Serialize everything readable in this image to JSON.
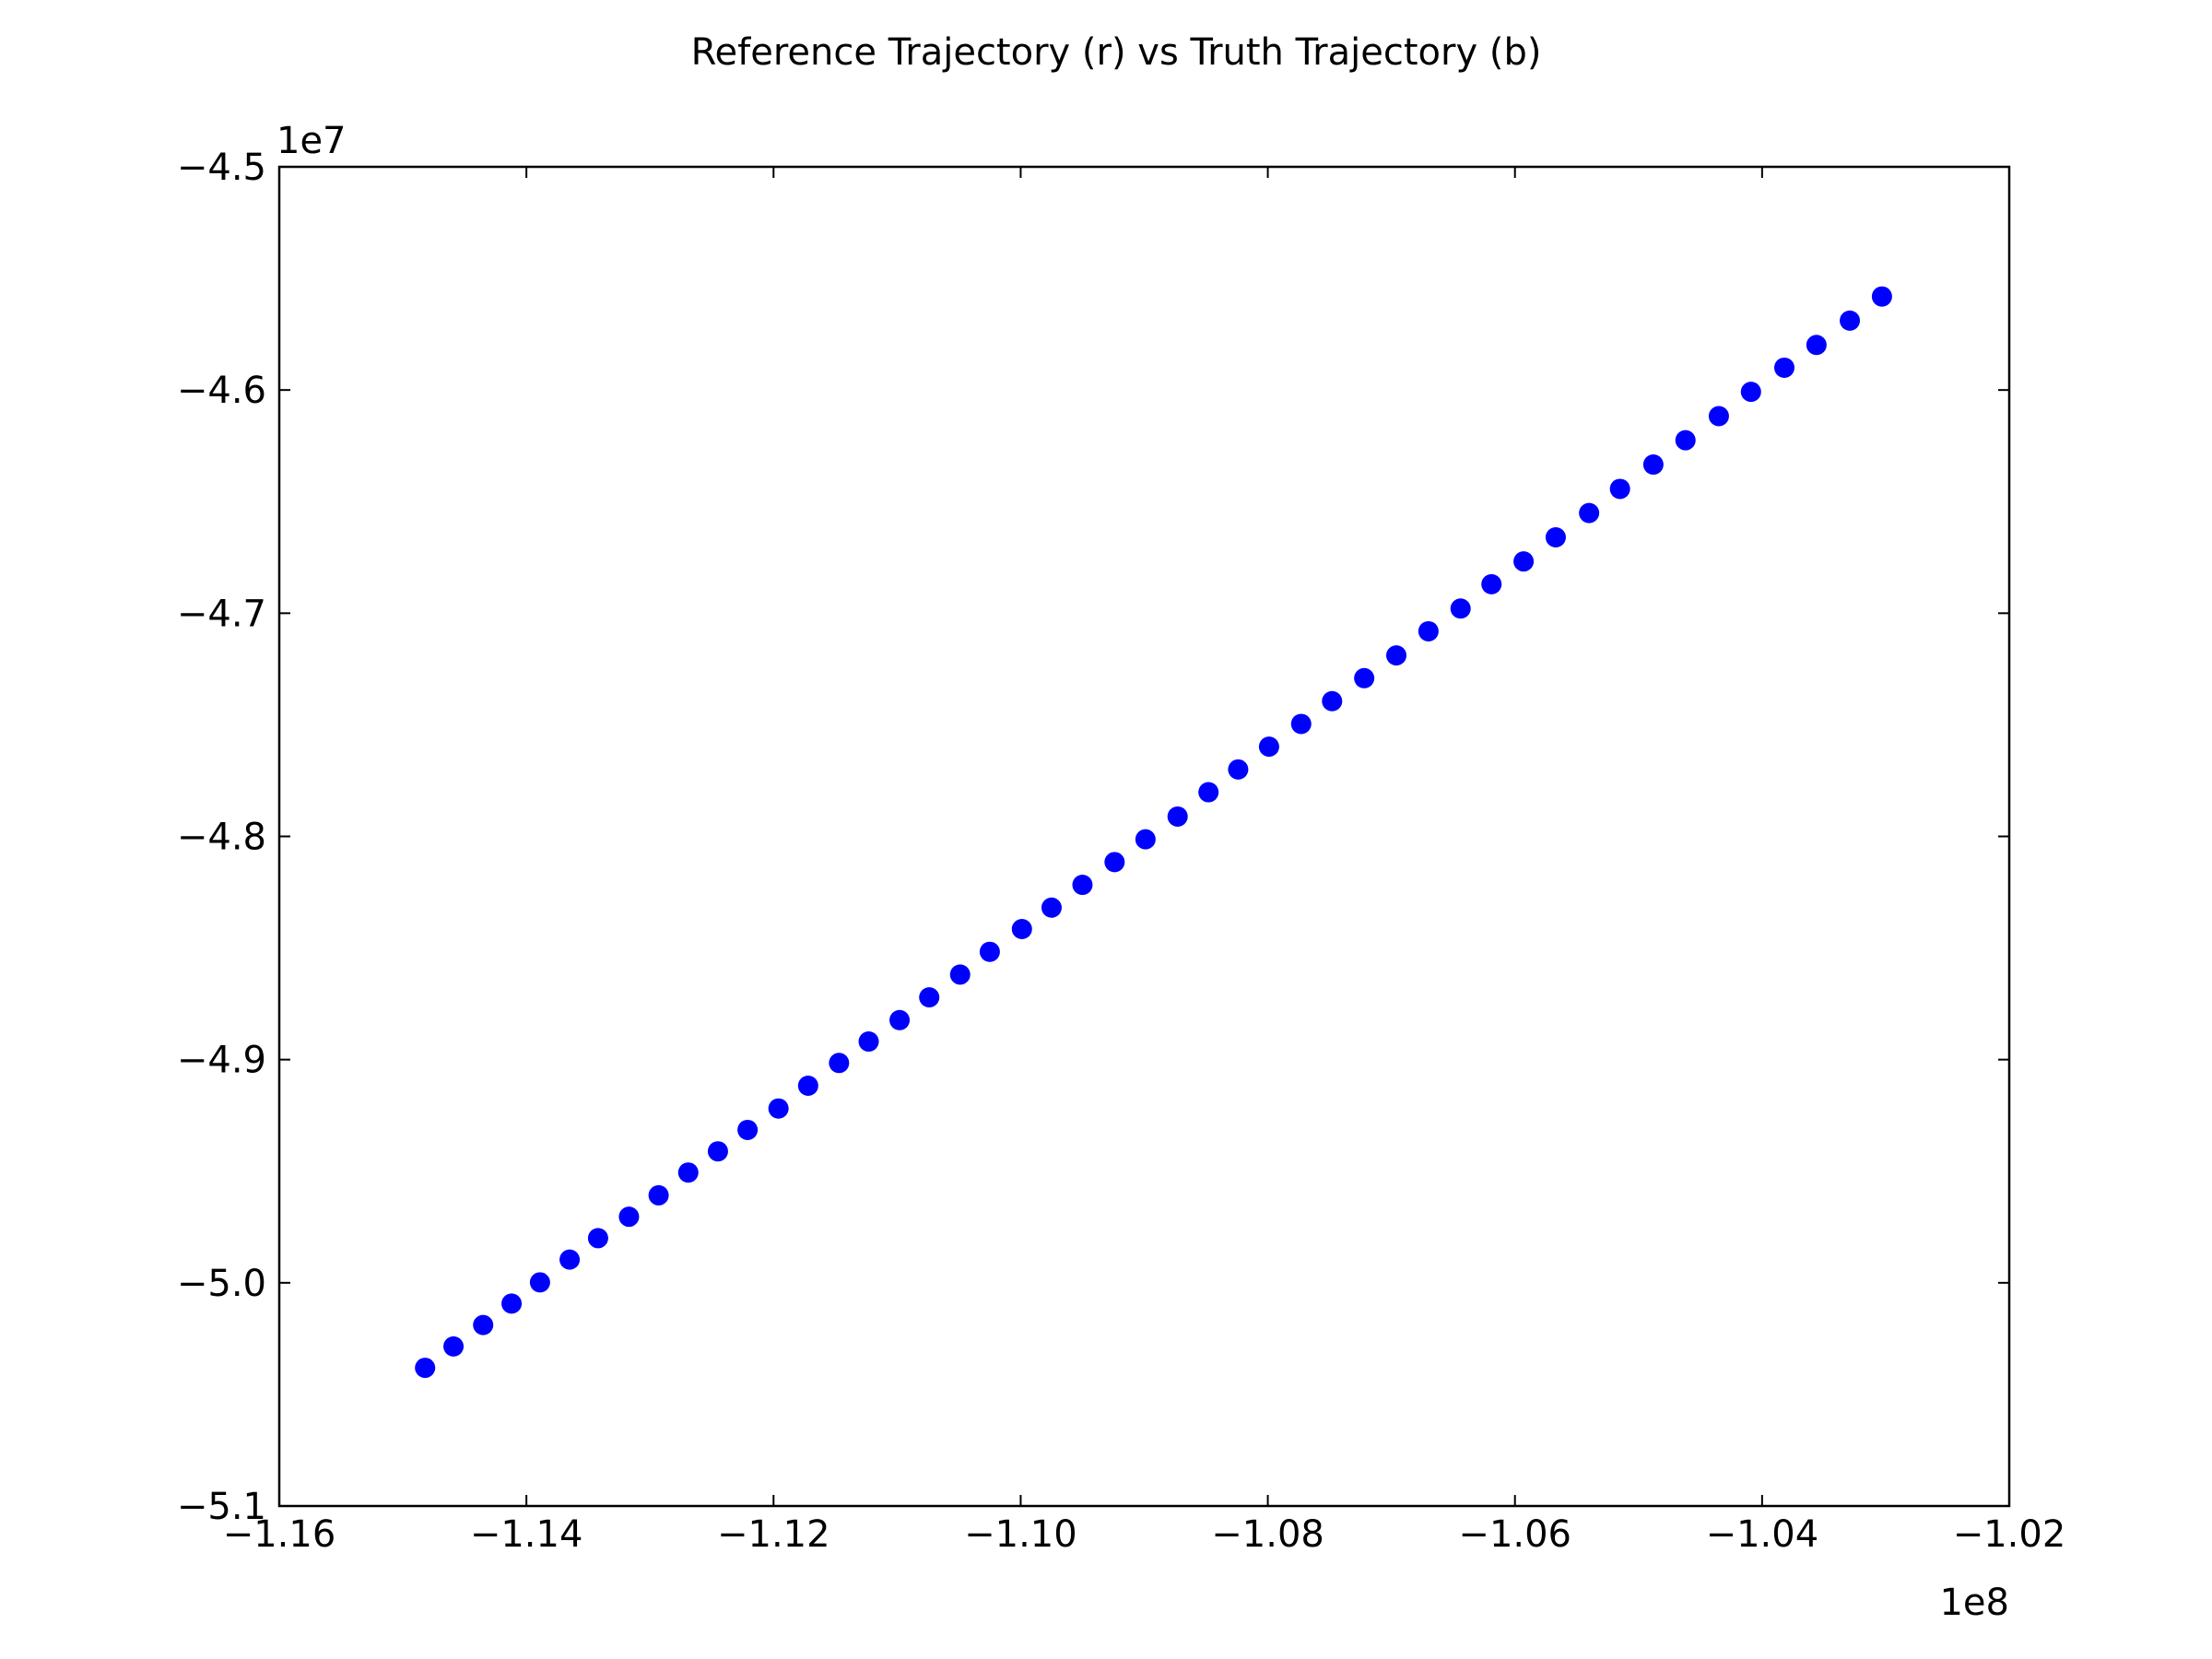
{
  "chart_data": {
    "type": "scatter",
    "title": "Reference Trajectory (r) vs Truth Trajectory (b)",
    "x_offset_label": "1e8",
    "y_offset_label": "1e7",
    "color": "#0000ff",
    "x": [
      -1.1482,
      -1.1459,
      -1.1435,
      -1.1412,
      -1.1389,
      -1.1365,
      -1.1342,
      -1.1317,
      -1.1293,
      -1.1269,
      -1.1245,
      -1.1221,
      -1.1196,
      -1.1172,
      -1.1147,
      -1.1123,
      -1.1098,
      -1.1074,
      -1.1049,
      -1.1025,
      -1.0999,
      -1.0975,
      -1.095,
      -1.0924,
      -1.0899,
      -1.0873,
      -1.0848,
      -1.0824,
      -1.0799,
      -1.0773,
      -1.0748,
      -1.0722,
      -1.0696,
      -1.067,
      -1.0644,
      -1.0619,
      -1.0593,
      -1.0567,
      -1.054,
      -1.0515,
      -1.0488,
      -1.0462,
      -1.0435,
      -1.0409,
      -1.0382,
      -1.0356,
      -1.0329,
      -1.0303
    ],
    "values": [
      -5.0381,
      -5.0285,
      -5.0189,
      -5.0093,
      -4.9998,
      -4.9896,
      -4.98,
      -4.9704,
      -4.9608,
      -4.9506,
      -4.9411,
      -4.9315,
      -4.9219,
      -4.9117,
      -4.9015,
      -4.8919,
      -4.8823,
      -4.8721,
      -4.8619,
      -4.8517,
      -4.8415,
      -4.8319,
      -4.8217,
      -4.8115,
      -4.8013,
      -4.7911,
      -4.7802,
      -4.77,
      -4.7598,
      -4.7496,
      -4.7394,
      -4.7291,
      -4.7189,
      -4.7081,
      -4.6979,
      -4.687,
      -4.6768,
      -4.666,
      -4.6551,
      -4.6443,
      -4.6334,
      -4.6225,
      -4.6117,
      -4.6008,
      -4.59,
      -4.5798,
      -4.5689,
      -4.5581
    ],
    "xlim": [
      -1.16,
      -1.02
    ],
    "xticks": [
      {
        "value": -1.16,
        "label": "−1.16"
      },
      {
        "value": -1.14,
        "label": "−1.14"
      },
      {
        "value": -1.12,
        "label": "−1.12"
      },
      {
        "value": -1.1,
        "label": "−1.10"
      },
      {
        "value": -1.08,
        "label": "−1.08"
      },
      {
        "value": -1.06,
        "label": "−1.06"
      },
      {
        "value": -1.04,
        "label": "−1.04"
      },
      {
        "value": -1.02,
        "label": "−1.02"
      }
    ],
    "ylim": [
      -5.1,
      -4.5
    ],
    "yticks": [
      {
        "value": -5.1,
        "label": "−5.1"
      },
      {
        "value": -5.0,
        "label": "−5.0"
      },
      {
        "value": -4.9,
        "label": "−4.9"
      },
      {
        "value": -4.8,
        "label": "−4.8"
      },
      {
        "value": -4.7,
        "label": "−4.7"
      },
      {
        "value": -4.6,
        "label": "−4.6"
      },
      {
        "value": -4.5,
        "label": "−4.5"
      }
    ],
    "grid": false
  }
}
